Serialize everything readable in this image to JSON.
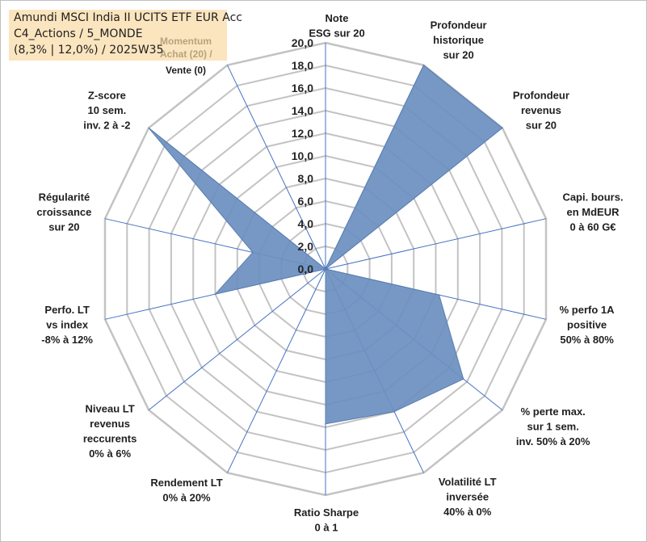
{
  "info": {
    "line1": "Amundi MSCI India II UCITS ETF EUR Acc",
    "line2": "C4_Actions / 5_MONDE",
    "line3": "(8,3% | 12,0%) / 2025W35",
    "momentum_line1": "Momentum",
    "momentum_line2": "Achat (20) /",
    "momentum_line3": "Vente (0)"
  },
  "colors": {
    "grid": "#c3c3c3",
    "spoke": "#4472c4",
    "fill": "#6b8fbf",
    "fill_stroke": "#5a7eb0",
    "info_bg": "#fbe5bf",
    "momentum_text": "#b5a47c"
  },
  "chart_data": {
    "type": "radar",
    "rmin": 0,
    "rmax": 20,
    "tick_values": [
      0,
      2,
      4,
      6,
      8,
      10,
      12,
      14,
      16,
      18,
      20
    ],
    "tick_labels": [
      "0,0",
      "2,0",
      "4,0",
      "6,0",
      "8,0",
      "10,0",
      "12,0",
      "14,0",
      "16,0",
      "18,0",
      "20,0"
    ],
    "axes": [
      {
        "label": [
          "Note",
          "ESG sur 20"
        ],
        "value": 0
      },
      {
        "label": [
          "Profondeur",
          "historique",
          "sur 20"
        ],
        "value": 20
      },
      {
        "label": [
          "Profondeur",
          "revenus",
          "sur 20"
        ],
        "value": 20
      },
      {
        "label": [
          "Capi. bours.",
          "en MdEUR",
          "0 à 60 G€"
        ],
        "value": 0
      },
      {
        "label": [
          "% perfo 1A",
          "positive",
          "50% à 80%"
        ],
        "value": 10.3
      },
      {
        "label": [
          "% perte max.",
          "sur 1 sem.",
          "inv. 50% à 20%"
        ],
        "value": 15.6
      },
      {
        "label": [
          "Volatilité LT",
          "inversée",
          "40% à 0%"
        ],
        "value": 14.0
      },
      {
        "label": [
          "Ratio Sharpe",
          "0 à 1"
        ],
        "value": 13.7
      },
      {
        "label": [
          "Rendement LT",
          "0% à 20%"
        ],
        "value": 0
      },
      {
        "label": [
          "Niveau LT",
          "revenus",
          "reccurents",
          "0% à 6%"
        ],
        "value": 0
      },
      {
        "label": [
          "Perfo. LT",
          "vs index",
          "-8% à 12%"
        ],
        "value": 10.0
      },
      {
        "label": [
          "Régularité",
          "croissance",
          "sur 20"
        ],
        "value": 6.6
      },
      {
        "label": [
          "Z-score",
          "10 sem.",
          "inv. 2 à -2"
        ],
        "value": 20
      },
      {
        "label": [
          "Momentum",
          "Achat (20) /",
          "Vente (0)"
        ],
        "value": 0
      }
    ]
  }
}
